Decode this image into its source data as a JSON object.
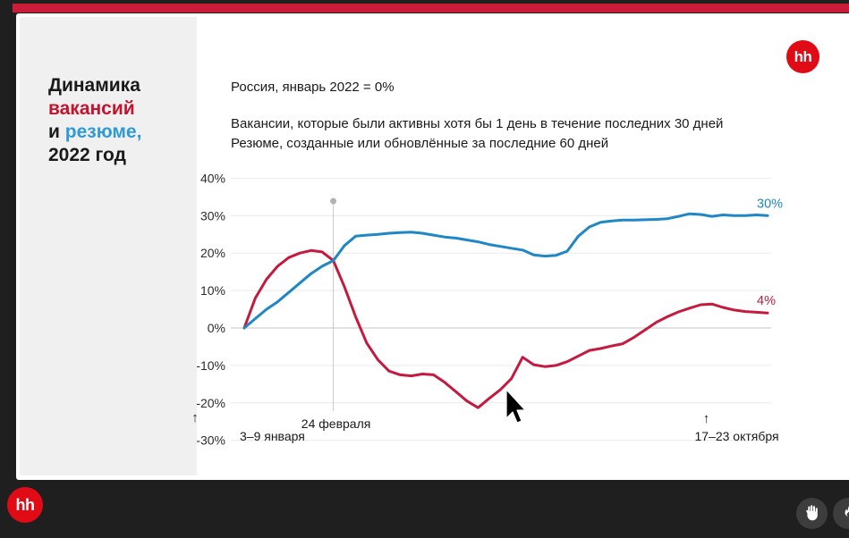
{
  "brand": {
    "logo_text": "hh"
  },
  "colors": {
    "background": "#1f1f1f",
    "accent_bar": "#cb1c39",
    "slide": "#ffffff",
    "sidebar": "#f0f0f0",
    "logo_red": "#e00b14",
    "button_gray": "#3d3d3d",
    "title_red": "#c4132e",
    "title_blue": "#2e9ad6",
    "vacancies_red": "#c51a3f",
    "resumes_blue": "#1e87c4"
  },
  "sidebar": {
    "title_lines": [
      {
        "segments": [
          {
            "text": "Динамика",
            "color": "#1a1a1a"
          }
        ]
      },
      {
        "segments": [
          {
            "text": "вакансий",
            "color": "#c4132e"
          }
        ]
      },
      {
        "segments": [
          {
            "text": "и ",
            "color": "#1a1a1a"
          },
          {
            "text": "резюме,",
            "color": "#2e9ad6"
          }
        ]
      },
      {
        "segments": [
          {
            "text": "2022 год",
            "color": "#1a1a1a"
          }
        ]
      }
    ]
  },
  "header": {
    "note": "Россия, январь 2022 = 0%",
    "description_line1": "Вакансии, которые были активны хотя бы 1 день в течение последних 30 дней",
    "description_line2": "Резюме, созданные или обновлённые за последние 60 дней"
  },
  "chart_data": {
    "type": "line",
    "title": "Динамика вакансий и резюме, 2022 год",
    "subtitle": "Россия, январь 2022 = 0%",
    "xlabel": "",
    "ylabel": "",
    "ylim": [
      -30,
      40
    ],
    "grid": "horizontal",
    "y_tick_values": [
      40,
      30,
      20,
      10,
      0,
      -10,
      -20,
      -30
    ],
    "y_tick_labels": [
      "40%",
      "30%",
      "20%",
      "10%",
      "0%",
      "-10%",
      "-20%",
      "-30%"
    ],
    "x_unit": "week_of_2022",
    "annotations": {
      "start": {
        "label": "3–9 января",
        "week": 1
      },
      "event": {
        "label": "24 февраля",
        "week": 9
      },
      "latest": {
        "label": "17–23 октября",
        "week": 42.5
      }
    },
    "up_arrow_glyph": "↑",
    "series": [
      {
        "name": "Вакансии, которые были активны хотя бы 1 день в течение последних 30 дней",
        "color": "#c51a3f",
        "end_label": "4%",
        "values": [
          0,
          8,
          13,
          16.5,
          18.8,
          20,
          20.7,
          20.3,
          18,
          11,
          3,
          -4,
          -8.5,
          -11.5,
          -12.5,
          -12.8,
          -12.3,
          -12.5,
          -14.5,
          -17,
          -19.5,
          -21.3,
          -18.8,
          -16.5,
          -13.5,
          -7.8,
          -9.8,
          -10.3,
          -10,
          -9,
          -7.5,
          -6,
          -5.5,
          -4.8,
          -4.2,
          -2.5,
          -0.5,
          1.5,
          3,
          4.3,
          5.3,
          6.2,
          6.4,
          5.5,
          4.8,
          4.4,
          4.2,
          4
        ]
      },
      {
        "name": "Резюме, созданные или обновлённые за последние 60 дней",
        "color": "#1e87c4",
        "end_label": "30%",
        "values": [
          0,
          2.5,
          5,
          7,
          9.5,
          12,
          14.5,
          16.5,
          18,
          22,
          24.5,
          24.8,
          25,
          25.3,
          25.5,
          25.6,
          25.3,
          24.8,
          24.3,
          24,
          23.5,
          23,
          22.3,
          21.8,
          21.3,
          20.8,
          19.5,
          19.2,
          19.4,
          20.5,
          24.5,
          27,
          28.2,
          28.6,
          28.8,
          28.8,
          28.9,
          29,
          29.2,
          29.8,
          30.5,
          30.3,
          29.8,
          30.2,
          30,
          30,
          30.2,
          30
        ]
      }
    ]
  },
  "footer": {
    "raise_hand_icon": "raised-hand",
    "reaction_icon": "reaction-flame"
  }
}
